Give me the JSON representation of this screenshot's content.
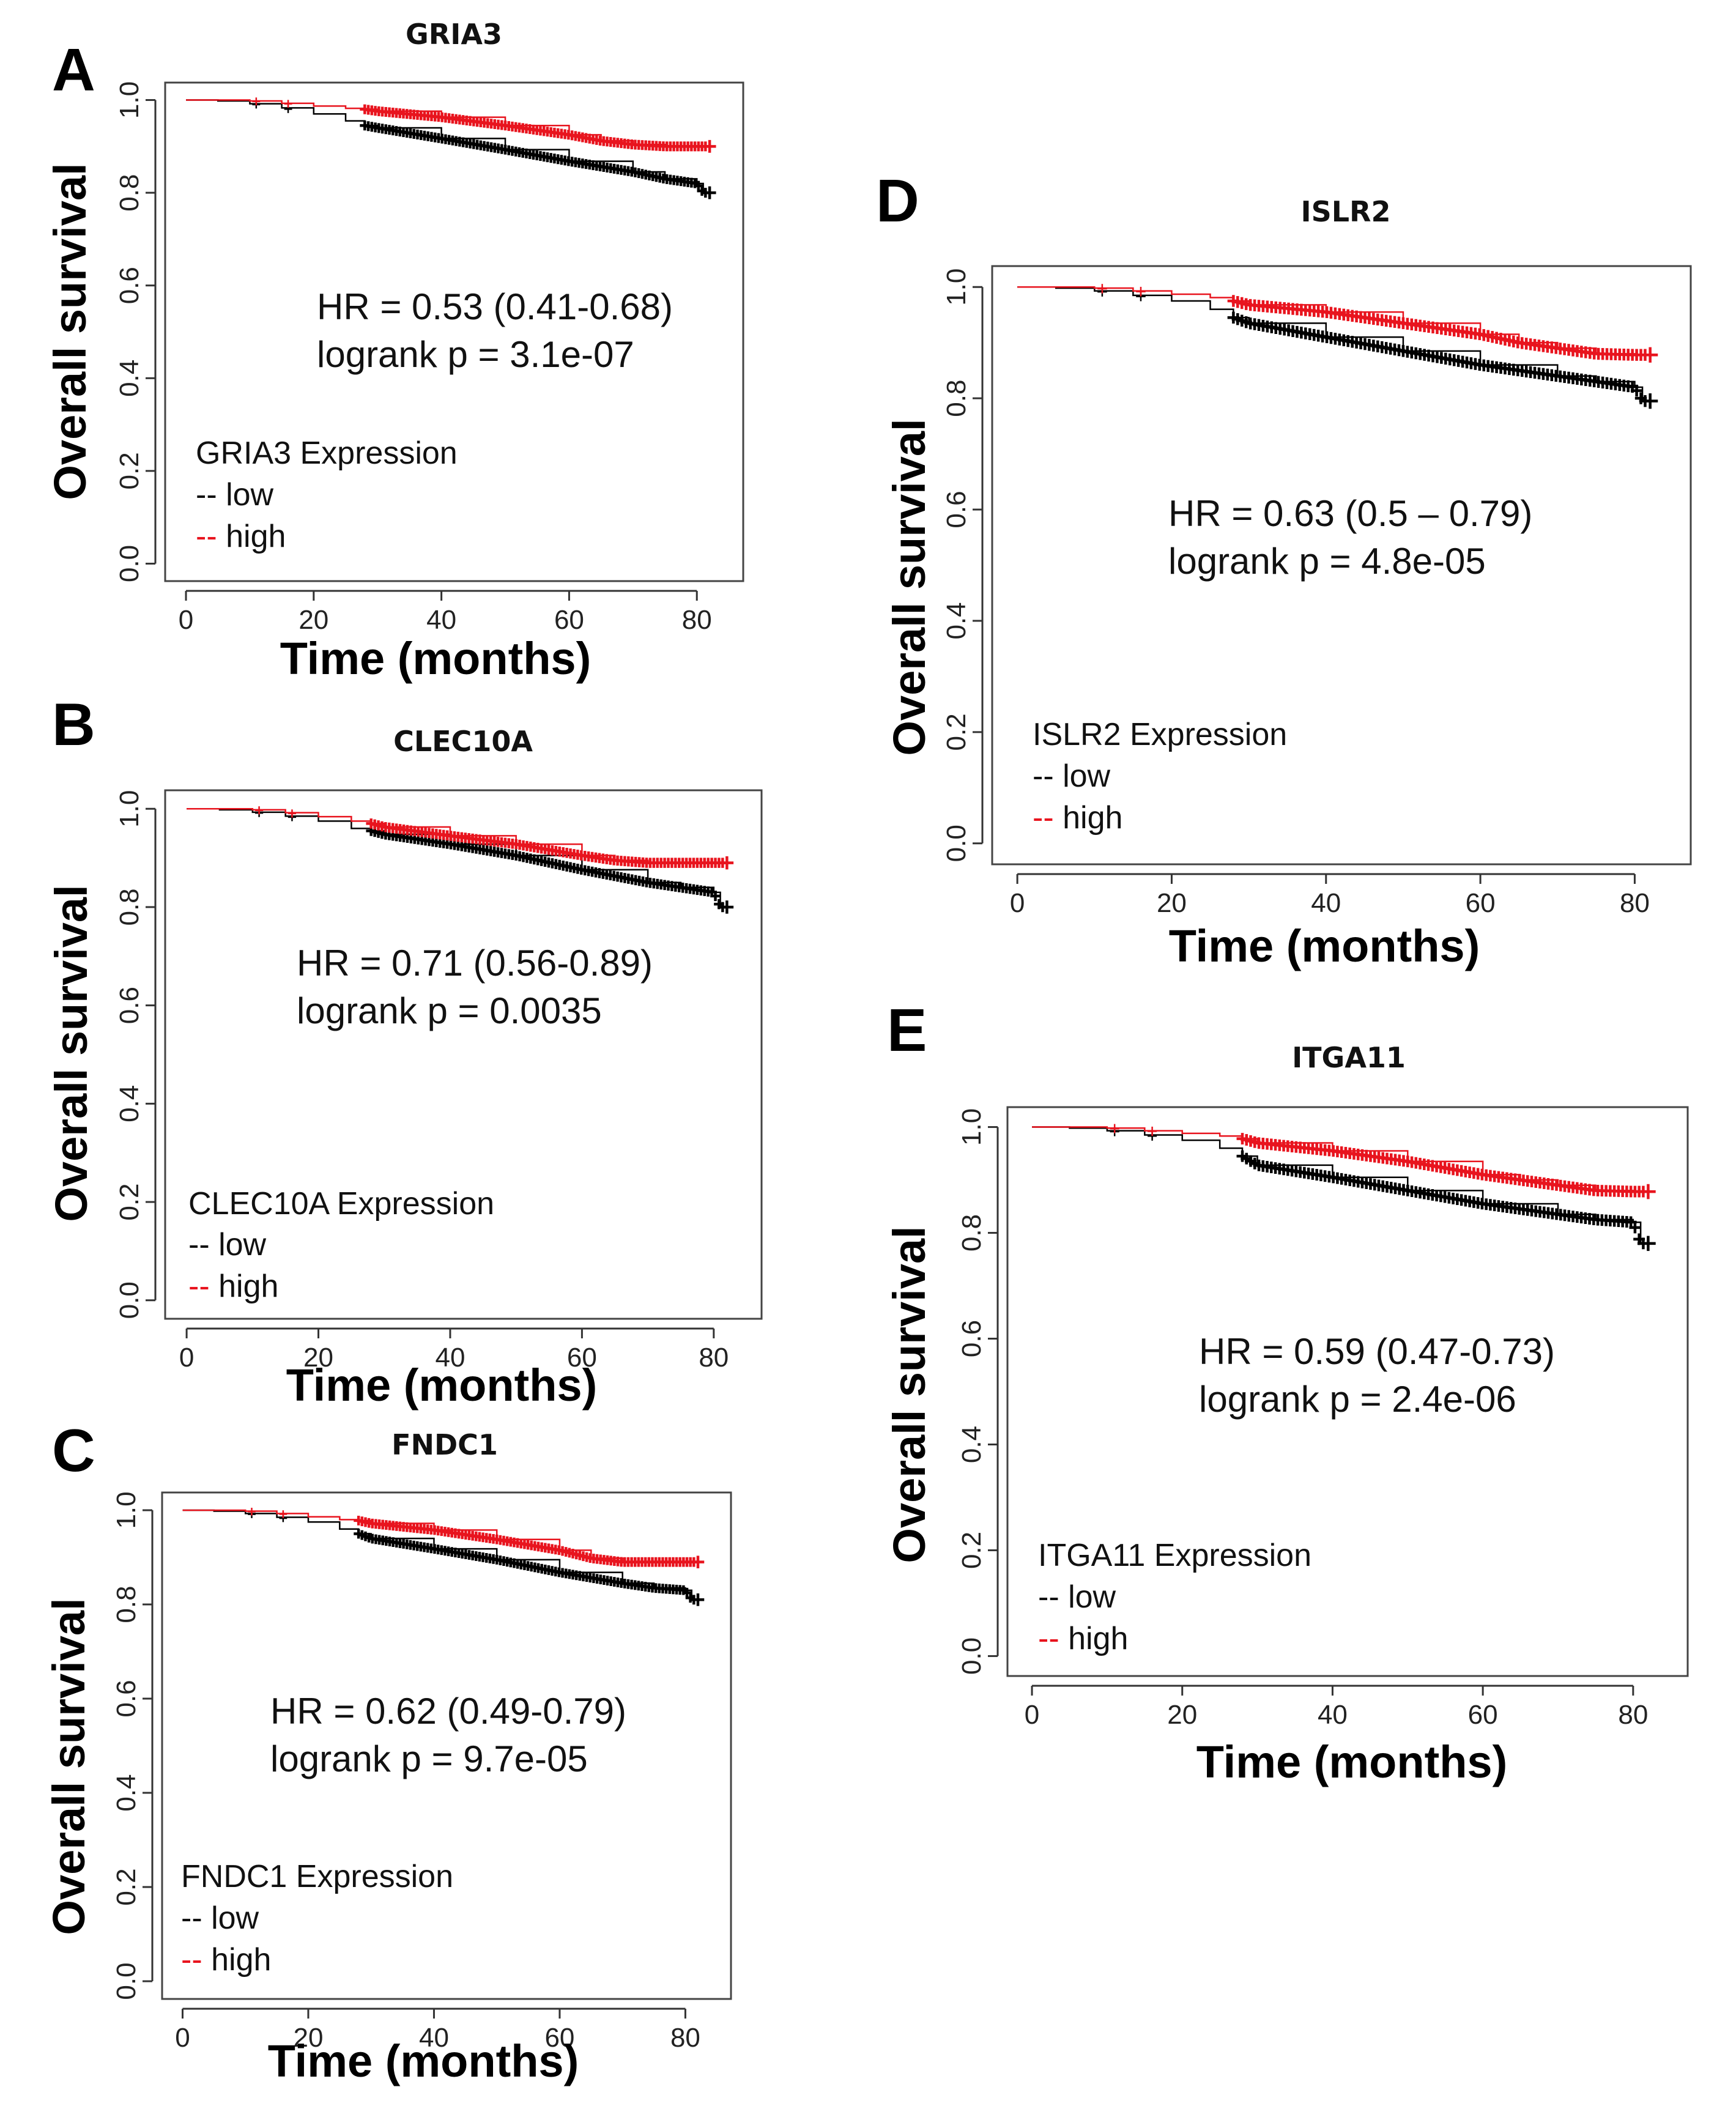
{
  "figure": {
    "colors": {
      "low": "#000000",
      "high": "#e8141e",
      "frame": "#444444"
    },
    "panels": [
      {
        "letter": "A",
        "gene": "GRIA3",
        "hr_text": "HR = 0.53 (0.41-0.68)",
        "p_text": "logrank p = 3.1e-07",
        "legend_title": "GRIA3 Expression",
        "legend_low": "-- low",
        "legend_high": "-- high",
        "xlabel": "Time (months)",
        "ylabel": "Overall survival",
        "xticks": [
          "0",
          "20",
          "40",
          "60",
          "80"
        ],
        "yticks": [
          "0.0",
          "0.2",
          "0.4",
          "0.6",
          "0.8",
          "1.0"
        ]
      },
      {
        "letter": "B",
        "gene": "CLEC10A",
        "hr_text": "HR = 0.71 (0.56-0.89)",
        "p_text": "logrank p = 0.0035",
        "legend_title": "CLEC10A Expression",
        "legend_low": "-- low",
        "legend_high": "-- high",
        "xlabel": "Time (months)",
        "ylabel": "Overall survival",
        "xticks": [
          "0",
          "20",
          "40",
          "60",
          "80"
        ],
        "yticks": [
          "0.0",
          "0.2",
          "0.4",
          "0.6",
          "0.8",
          "1.0"
        ]
      },
      {
        "letter": "C",
        "gene": "FNDC1",
        "hr_text": "HR = 0.62 (0.49-0.79)",
        "p_text": "logrank p = 9.7e-05",
        "legend_title": "FNDC1 Expression",
        "legend_low": "-- low",
        "legend_high": "-- high",
        "xlabel": "Time (months)",
        "ylabel": "Overall survival",
        "xticks": [
          "0",
          "20",
          "40",
          "60",
          "80"
        ],
        "yticks": [
          "0.0",
          "0.2",
          "0.4",
          "0.6",
          "0.8",
          "1.0"
        ]
      },
      {
        "letter": "D",
        "gene": "ISLR2",
        "hr_text": "HR = 0.63 (0.5 – 0.79)",
        "p_text": "logrank p = 4.8e-05",
        "legend_title": "ISLR2 Expression",
        "legend_low": "-- low",
        "legend_high": "-- high",
        "xlabel": "Time (months)",
        "ylabel": "Overall survival",
        "xticks": [
          "0",
          "20",
          "40",
          "60",
          "80"
        ],
        "yticks": [
          "0.0",
          "0.2",
          "0.4",
          "0.6",
          "0.8",
          "1.0"
        ]
      },
      {
        "letter": "E",
        "gene": "ITGA11",
        "hr_text": "HR = 0.59 (0.47-0.73)",
        "p_text": "logrank p = 2.4e-06",
        "legend_title": "ITGA11 Expression",
        "legend_low": "-- low",
        "legend_high": "-- high",
        "xlabel": "Time (months)",
        "ylabel": "Overall survival",
        "xticks": [
          "0",
          "20",
          "40",
          "60",
          "80"
        ],
        "yticks": [
          "0.0",
          "0.2",
          "0.4",
          "0.6",
          "0.8",
          "1.0"
        ]
      }
    ]
  },
  "chart_data": [
    {
      "type": "line",
      "title": "GRIA3",
      "xlabel": "Time (months)",
      "ylabel": "Overall survival",
      "xlim": [
        0,
        84
      ],
      "ylim": [
        0,
        1.0
      ],
      "series": [
        {
          "name": "low",
          "x": [
            0,
            5,
            10,
            15,
            20,
            25,
            28,
            30,
            40,
            50,
            60,
            70,
            75,
            80,
            81,
            82
          ],
          "values": [
            1.0,
            0.998,
            0.992,
            0.983,
            0.97,
            0.955,
            0.945,
            0.94,
            0.917,
            0.893,
            0.868,
            0.845,
            0.83,
            0.82,
            0.8,
            0.8
          ]
        },
        {
          "name": "high",
          "x": [
            0,
            5,
            10,
            15,
            20,
            25,
            28,
            30,
            40,
            50,
            60,
            65,
            70,
            75,
            80,
            82
          ],
          "values": [
            1.0,
            1.0,
            0.998,
            0.993,
            0.987,
            0.982,
            0.98,
            0.976,
            0.963,
            0.945,
            0.925,
            0.912,
            0.904,
            0.9,
            0.9,
            0.9
          ]
        }
      ]
    },
    {
      "type": "line",
      "title": "CLEC10A",
      "xlabel": "Time (months)",
      "ylabel": "Overall survival",
      "xlim": [
        0,
        84
      ],
      "ylim": [
        0,
        1.0
      ],
      "series": [
        {
          "name": "low",
          "x": [
            0,
            5,
            10,
            15,
            20,
            25,
            28,
            30,
            40,
            50,
            60,
            70,
            75,
            80,
            81,
            82
          ],
          "values": [
            1.0,
            0.998,
            0.993,
            0.985,
            0.975,
            0.96,
            0.955,
            0.948,
            0.928,
            0.905,
            0.876,
            0.85,
            0.84,
            0.83,
            0.8,
            0.8
          ]
        },
        {
          "name": "high",
          "x": [
            0,
            5,
            10,
            15,
            20,
            25,
            28,
            30,
            40,
            50,
            60,
            65,
            70,
            75,
            80,
            82
          ],
          "values": [
            1.0,
            1.0,
            0.998,
            0.992,
            0.984,
            0.975,
            0.97,
            0.963,
            0.945,
            0.928,
            0.905,
            0.895,
            0.89,
            0.89,
            0.89,
            0.89
          ]
        }
      ]
    },
    {
      "type": "line",
      "title": "FNDC1",
      "xlabel": "Time (months)",
      "ylabel": "Overall survival",
      "xlim": [
        0,
        84
      ],
      "ylim": [
        0,
        1.0
      ],
      "series": [
        {
          "name": "low",
          "x": [
            0,
            5,
            10,
            15,
            20,
            25,
            28,
            30,
            40,
            50,
            60,
            70,
            75,
            80,
            81,
            82
          ],
          "values": [
            1.0,
            0.998,
            0.993,
            0.985,
            0.975,
            0.96,
            0.95,
            0.94,
            0.918,
            0.895,
            0.868,
            0.845,
            0.835,
            0.83,
            0.81,
            0.81
          ]
        },
        {
          "name": "high",
          "x": [
            0,
            5,
            10,
            15,
            20,
            25,
            28,
            30,
            40,
            50,
            60,
            65,
            70,
            75,
            80,
            82
          ],
          "values": [
            1.0,
            1.0,
            0.998,
            0.993,
            0.986,
            0.98,
            0.978,
            0.972,
            0.958,
            0.938,
            0.915,
            0.898,
            0.89,
            0.89,
            0.89,
            0.89
          ]
        }
      ]
    },
    {
      "type": "line",
      "title": "ISLR2",
      "xlabel": "Time (months)",
      "ylabel": "Overall survival",
      "xlim": [
        0,
        84
      ],
      "ylim": [
        0,
        1.0
      ],
      "series": [
        {
          "name": "low",
          "x": [
            0,
            5,
            10,
            15,
            20,
            25,
            28,
            30,
            40,
            50,
            60,
            70,
            75,
            80,
            81,
            82
          ],
          "values": [
            1.0,
            0.998,
            0.993,
            0.985,
            0.975,
            0.96,
            0.945,
            0.935,
            0.91,
            0.885,
            0.86,
            0.84,
            0.83,
            0.82,
            0.795,
            0.795
          ]
        },
        {
          "name": "high",
          "x": [
            0,
            5,
            10,
            15,
            20,
            25,
            28,
            30,
            40,
            50,
            60,
            65,
            70,
            75,
            80,
            82
          ],
          "values": [
            1.0,
            1.0,
            0.998,
            0.993,
            0.987,
            0.981,
            0.975,
            0.968,
            0.955,
            0.935,
            0.915,
            0.9,
            0.89,
            0.88,
            0.878,
            0.878
          ]
        }
      ]
    },
    {
      "type": "line",
      "title": "ITGA11",
      "xlabel": "Time (months)",
      "ylabel": "Overall survival",
      "xlim": [
        0,
        84
      ],
      "ylim": [
        0,
        1.0
      ],
      "series": [
        {
          "name": "low",
          "x": [
            0,
            5,
            10,
            15,
            20,
            25,
            28,
            30,
            40,
            50,
            60,
            70,
            75,
            80,
            81,
            82
          ],
          "values": [
            1.0,
            0.998,
            0.993,
            0.985,
            0.975,
            0.96,
            0.945,
            0.928,
            0.905,
            0.88,
            0.855,
            0.835,
            0.825,
            0.82,
            0.78,
            0.78
          ]
        },
        {
          "name": "high",
          "x": [
            0,
            5,
            10,
            15,
            20,
            25,
            28,
            30,
            40,
            50,
            60,
            65,
            70,
            75,
            80,
            82
          ],
          "values": [
            1.0,
            1.0,
            0.998,
            0.993,
            0.988,
            0.983,
            0.978,
            0.97,
            0.955,
            0.935,
            0.91,
            0.9,
            0.89,
            0.88,
            0.878,
            0.878
          ]
        }
      ]
    }
  ]
}
